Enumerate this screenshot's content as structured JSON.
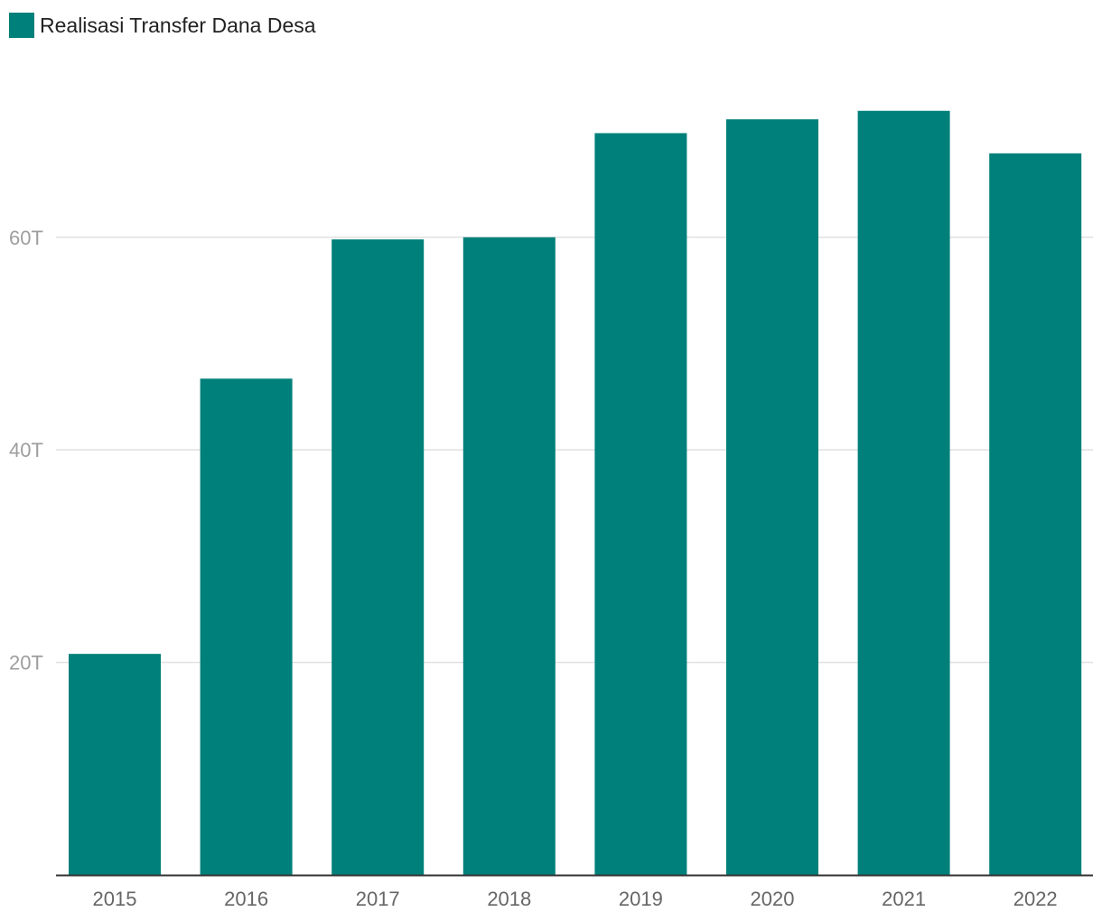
{
  "chart_data": {
    "type": "bar",
    "categories": [
      "2015",
      "2016",
      "2017",
      "2018",
      "2019",
      "2020",
      "2021",
      "2022"
    ],
    "series": [
      {
        "name": "Realisasi Transfer Dana Desa",
        "values": [
          20.8,
          46.7,
          59.8,
          60.0,
          69.8,
          71.1,
          71.9,
          67.9
        ]
      }
    ],
    "ylim": [
      0,
      80
    ],
    "yticks": [
      20,
      40,
      60
    ],
    "ytick_labels": [
      "20T",
      "40T",
      "60T"
    ],
    "title": "",
    "xlabel": "",
    "ylabel": "",
    "grid": true,
    "legend_position": "top-left",
    "colors": {
      "bar": "#00807a",
      "grid": "#e0e0e0",
      "axis": "#333333"
    }
  }
}
